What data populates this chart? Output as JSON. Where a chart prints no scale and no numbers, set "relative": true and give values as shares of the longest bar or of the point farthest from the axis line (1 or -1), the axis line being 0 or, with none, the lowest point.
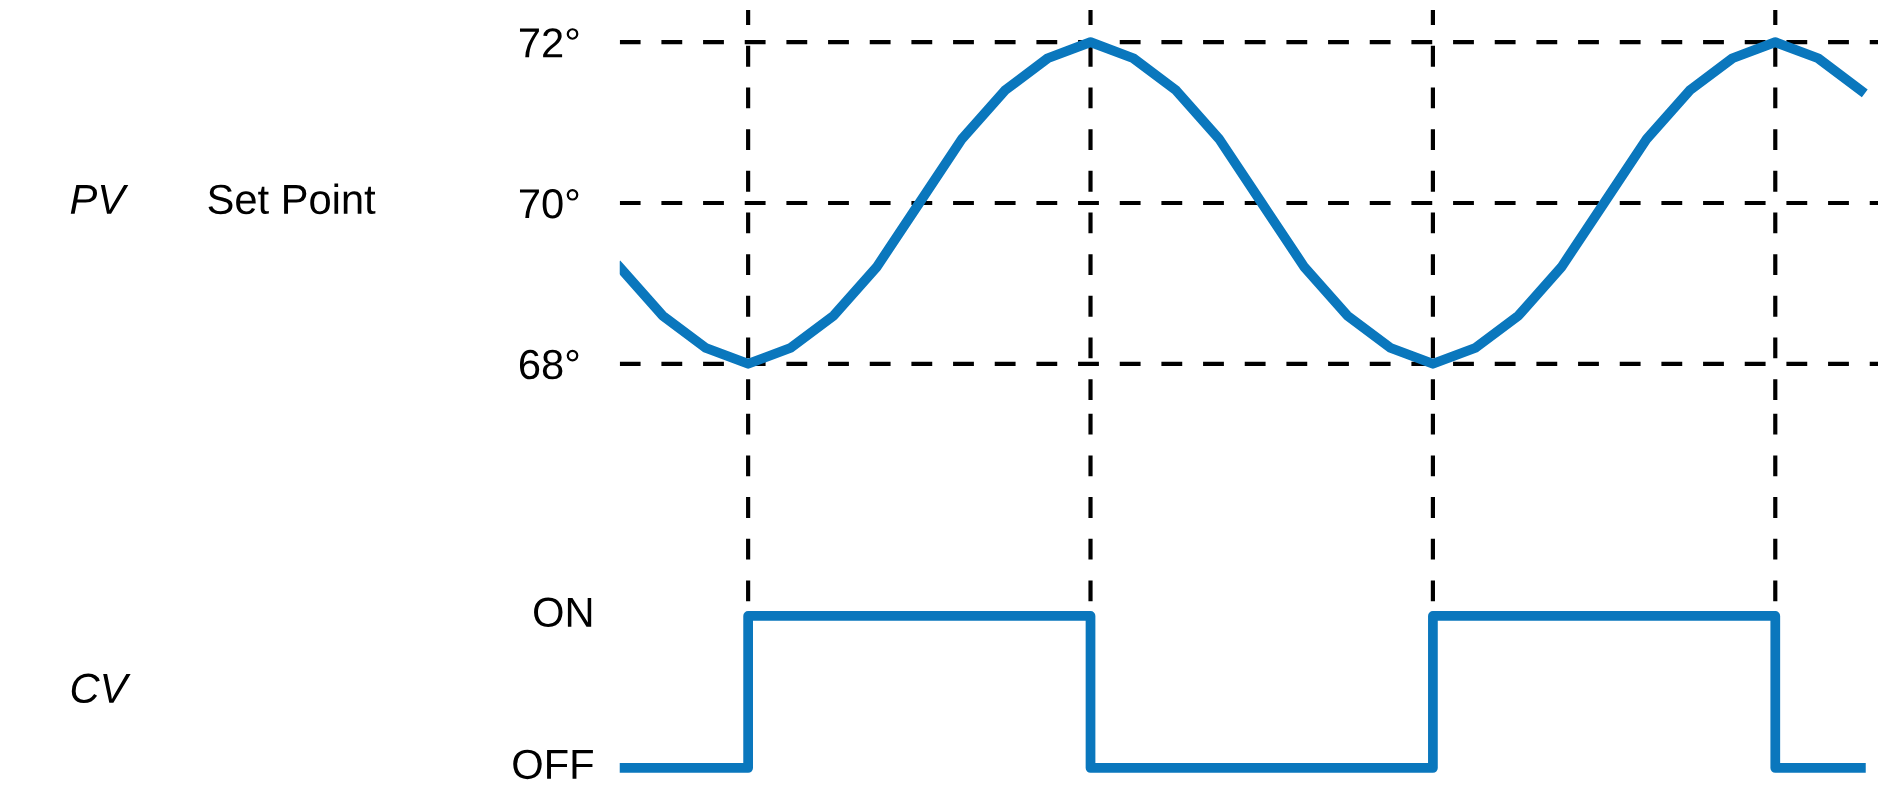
{
  "chart_data": [
    {
      "type": "line",
      "annotations": [
        "PV",
        "Set Point"
      ],
      "categories": [
        null,
        null,
        null,
        null,
        null,
        null,
        null,
        null,
        null,
        null,
        null,
        null,
        null,
        null,
        null,
        null,
        null,
        null,
        null,
        null,
        null,
        null,
        null,
        null,
        null,
        null,
        null,
        null,
        null,
        null
      ],
      "series": [
        {
          "color": "#0a77bd",
          "values": [
            69.2,
            68.6,
            68.2,
            68,
            68.2,
            68.6,
            69.2,
            70,
            70.8,
            71.4,
            71.8,
            72,
            71.8,
            71.4,
            70.8,
            70,
            69.2,
            68.6,
            68.2,
            68,
            68.2,
            68.6,
            69.2,
            70,
            70.8,
            71.4,
            71.8,
            72,
            71.8,
            71.4
          ]
        }
      ],
      "ylim": [
        67.55,
        72.4
      ],
      "yticks": [
        {
          "value": 68,
          "label": "68°"
        },
        {
          "value": 70,
          "label": "70°"
        },
        {
          "value": 72,
          "label": "72°"
        }
      ],
      "grid": true,
      "tick_labels": "y"
    },
    {
      "type": "step",
      "annotations": [
        "CV",
        "ON",
        "OFF"
      ],
      "relative": true,
      "categories": [
        null,
        null,
        null,
        null,
        null,
        null,
        null,
        null,
        null,
        null,
        null,
        null,
        null,
        null,
        null,
        null,
        null,
        null,
        null,
        null,
        null,
        null,
        null,
        null,
        null,
        null,
        null,
        null,
        null,
        null
      ],
      "series": [
        {
          "color": "#0a77bd",
          "values": [
            0,
            0,
            0,
            1,
            1,
            1,
            1,
            1,
            1,
            1,
            1,
            0,
            0,
            0,
            0,
            0,
            0,
            0,
            0,
            1,
            1,
            1,
            1,
            1,
            1,
            1,
            1,
            0,
            0,
            0
          ]
        }
      ],
      "grid": "x",
      "tick_labels": false
    }
  ]
}
